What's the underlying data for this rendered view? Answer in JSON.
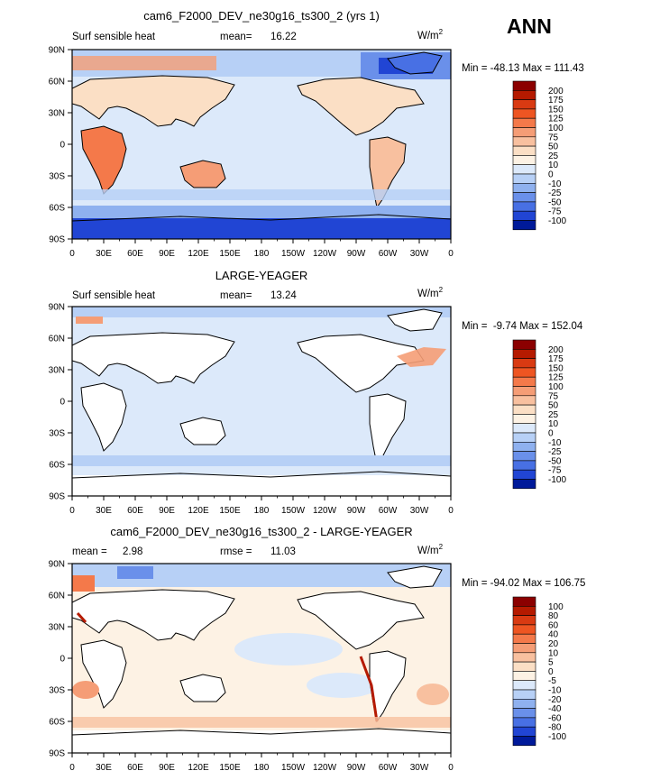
{
  "season": "ANN",
  "sensible_units": "W/m2",
  "panels": [
    {
      "title": "cam6_F2000_DEV_ne30g16_ts300_2 (yrs 1)",
      "left_label": "Surf sensible heat",
      "stat_label": "mean=",
      "stat_value": "16.22",
      "units_base": "W/m",
      "units_exp": "2",
      "min_max": "Min = -48.13 Max = 111.43"
    },
    {
      "title": "LARGE-YEAGER",
      "left_label": "Surf sensible heat",
      "stat_label": "mean=",
      "stat_value": "13.24",
      "units_base": "W/m",
      "units_exp": "2",
      "min_max": "Min =  -9.74 Max = 152.04"
    },
    {
      "title": "cam6_F2000_DEV_ne30g16_ts300_2 - LARGE-YEAGER",
      "left_label": "mean =",
      "stat_label": "2.98",
      "rmse_label": "rmse =",
      "rmse_value": "11.03",
      "units_base": "W/m",
      "units_exp": "2",
      "min_max": "Min = -94.02 Max = 106.75"
    }
  ],
  "lat_ticks": [
    "90N",
    "60N",
    "30N",
    "0",
    "30S",
    "60S",
    "90S"
  ],
  "lon_ticks": [
    "0",
    "30E",
    "60E",
    "90E",
    "120E",
    "150E",
    "180",
    "150W",
    "120W",
    "90W",
    "60W",
    "30W",
    "0"
  ],
  "colorbar_main": {
    "labels": [
      "200",
      "175",
      "150",
      "125",
      "100",
      "75",
      "50",
      "25",
      "10",
      "0",
      "-10",
      "-25",
      "-50",
      "-75",
      "-100"
    ],
    "colors": [
      "#8b0000",
      "#b51a00",
      "#d93a12",
      "#ee5522",
      "#f4794a",
      "#f59d76",
      "#f8c09f",
      "#fbdfc5",
      "#fdf2e4",
      "#dce9fa",
      "#b7d0f6",
      "#8fb1ef",
      "#6a90ea",
      "#4870e4",
      "#2145d4",
      "#001a9a"
    ]
  },
  "colorbar_diff": {
    "labels": [
      "100",
      "80",
      "60",
      "40",
      "20",
      "10",
      "5",
      "0",
      "-5",
      "-10",
      "-20",
      "-40",
      "-60",
      "-80",
      "-100"
    ],
    "colors": [
      "#8b0000",
      "#b51a00",
      "#d93a12",
      "#ee5522",
      "#f4794a",
      "#f59d76",
      "#f8c09f",
      "#fbdfc5",
      "#fdf2e4",
      "#dce9fa",
      "#b7d0f6",
      "#8fb1ef",
      "#6a90ea",
      "#4870e4",
      "#2145d4",
      "#001a9a"
    ]
  },
  "chart_data": [
    {
      "type": "heatmap",
      "title": "cam6_F2000_DEV_ne30g16_ts300_2 (yrs 1)",
      "variable": "Surf sensible heat",
      "units": "W/m2",
      "mean": 16.22,
      "min": -48.13,
      "max": 111.43,
      "xlim": [
        0,
        360
      ],
      "ylim": [
        -90,
        90
      ],
      "contour_levels": [
        -100,
        -75,
        -50,
        -25,
        -10,
        0,
        10,
        25,
        50,
        75,
        100,
        125,
        150,
        175,
        200
      ]
    },
    {
      "type": "heatmap",
      "title": "LARGE-YEAGER",
      "variable": "Surf sensible heat",
      "units": "W/m2",
      "mean": 13.24,
      "min": -9.74,
      "max": 152.04,
      "xlim": [
        0,
        360
      ],
      "ylim": [
        -90,
        90
      ],
      "contour_levels": [
        -100,
        -75,
        -50,
        -25,
        -10,
        0,
        10,
        25,
        50,
        75,
        100,
        125,
        150,
        175,
        200
      ]
    },
    {
      "type": "heatmap",
      "title": "cam6_F2000_DEV_ne30g16_ts300_2 - LARGE-YEAGER",
      "units": "W/m2",
      "mean": 2.98,
      "rmse": 11.03,
      "min": -94.02,
      "max": 106.75,
      "xlim": [
        0,
        360
      ],
      "ylim": [
        -90,
        90
      ],
      "contour_levels": [
        -100,
        -80,
        -60,
        -40,
        -20,
        -10,
        -5,
        0,
        5,
        10,
        20,
        40,
        60,
        80,
        100
      ]
    }
  ]
}
